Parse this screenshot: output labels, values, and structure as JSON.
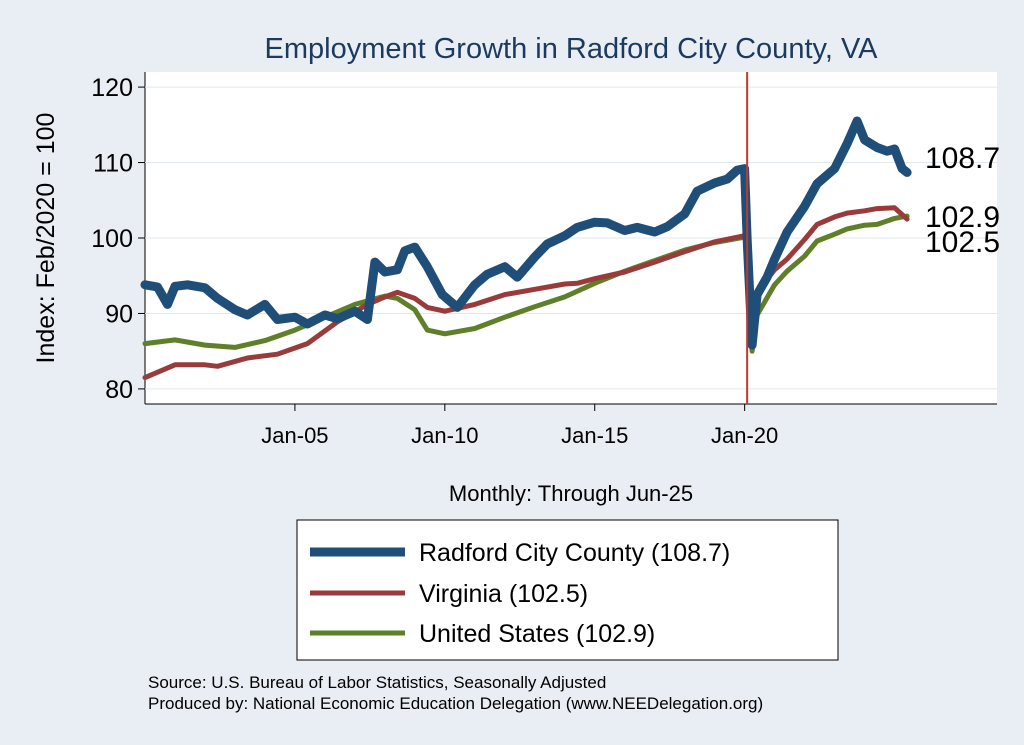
{
  "chart_data": {
    "type": "line",
    "title": "Employment Growth in Radford City  County, VA",
    "xlabel": "Monthly: Through Jun-25",
    "ylabel": "Index: Feb/2020 = 100",
    "xlim": [
      "2000-01",
      "2028-06"
    ],
    "ylim": [
      78,
      122
    ],
    "yticks": [
      80,
      90,
      100,
      110,
      120
    ],
    "xticks": [
      {
        "label": "Jan-05",
        "date": "2005-01"
      },
      {
        "label": "Jan-10",
        "date": "2010-01"
      },
      {
        "label": "Jan-15",
        "date": "2015-01"
      },
      {
        "label": "Jan-20",
        "date": "2020-01"
      }
    ],
    "grid": true,
    "legend_position": "bottom",
    "reference_line": {
      "date": "2020-02",
      "color": "#c0392b"
    },
    "end_labels": [
      "108.7",
      "102.9",
      "102.5"
    ],
    "series": [
      {
        "name": "Radford City  County (108.7)",
        "color": "#1f4e79",
        "points": [
          [
            "2000-01",
            93.8
          ],
          [
            "2000-06",
            93.5
          ],
          [
            "2000-10",
            91.2
          ],
          [
            "2001-01",
            93.6
          ],
          [
            "2001-06",
            93.8
          ],
          [
            "2002-01",
            93.4
          ],
          [
            "2002-06",
            92.0
          ],
          [
            "2003-01",
            90.5
          ],
          [
            "2003-06",
            89.8
          ],
          [
            "2004-01",
            91.2
          ],
          [
            "2004-06",
            89.2
          ],
          [
            "2005-01",
            89.5
          ],
          [
            "2005-06",
            88.6
          ],
          [
            "2006-01",
            89.8
          ],
          [
            "2006-06",
            89.3
          ],
          [
            "2007-01",
            90.3
          ],
          [
            "2007-06",
            89.2
          ],
          [
            "2007-09",
            96.8
          ],
          [
            "2008-01",
            95.5
          ],
          [
            "2008-06",
            95.8
          ],
          [
            "2008-09",
            98.3
          ],
          [
            "2009-01",
            98.8
          ],
          [
            "2009-06",
            96.2
          ],
          [
            "2009-12",
            92.5
          ],
          [
            "2010-06",
            90.8
          ],
          [
            "2011-01",
            93.8
          ],
          [
            "2011-06",
            95.2
          ],
          [
            "2012-01",
            96.2
          ],
          [
            "2012-06",
            94.8
          ],
          [
            "2013-01",
            97.5
          ],
          [
            "2013-06",
            99.2
          ],
          [
            "2014-01",
            100.3
          ],
          [
            "2014-06",
            101.4
          ],
          [
            "2015-01",
            102.1
          ],
          [
            "2015-06",
            102.0
          ],
          [
            "2016-01",
            101.0
          ],
          [
            "2016-06",
            101.4
          ],
          [
            "2017-01",
            100.8
          ],
          [
            "2017-06",
            101.5
          ],
          [
            "2018-01",
            103.2
          ],
          [
            "2018-06",
            106.2
          ],
          [
            "2019-01",
            107.3
          ],
          [
            "2019-06",
            107.8
          ],
          [
            "2019-10",
            109.0
          ],
          [
            "2020-01",
            109.2
          ],
          [
            "2020-02",
            100.0
          ],
          [
            "2020-04",
            85.8
          ],
          [
            "2020-06",
            92.5
          ],
          [
            "2020-10",
            94.8
          ],
          [
            "2021-01",
            97.2
          ],
          [
            "2021-06",
            100.8
          ],
          [
            "2022-01",
            104.2
          ],
          [
            "2022-06",
            107.2
          ],
          [
            "2023-01",
            109.2
          ],
          [
            "2023-06",
            112.5
          ],
          [
            "2023-10",
            115.5
          ],
          [
            "2024-01",
            113.0
          ],
          [
            "2024-06",
            112.0
          ],
          [
            "2024-10",
            111.5
          ],
          [
            "2025-01",
            111.8
          ],
          [
            "2025-04",
            109.2
          ],
          [
            "2025-06",
            108.7
          ]
        ]
      },
      {
        "name": "Virginia (102.5)",
        "color": "#9a3b3b",
        "points": [
          [
            "2000-01",
            81.5
          ],
          [
            "2001-01",
            83.2
          ],
          [
            "2002-01",
            83.2
          ],
          [
            "2002-06",
            83.0
          ],
          [
            "2003-06",
            84.1
          ],
          [
            "2004-06",
            84.6
          ],
          [
            "2005-06",
            86.0
          ],
          [
            "2006-06",
            88.9
          ],
          [
            "2007-06",
            91.2
          ],
          [
            "2008-01",
            92.2
          ],
          [
            "2008-06",
            92.8
          ],
          [
            "2009-01",
            92.0
          ],
          [
            "2009-06",
            90.8
          ],
          [
            "2010-01",
            90.3
          ],
          [
            "2011-01",
            91.2
          ],
          [
            "2012-01",
            92.5
          ],
          [
            "2013-01",
            93.2
          ],
          [
            "2014-01",
            93.9
          ],
          [
            "2014-06",
            94.0
          ],
          [
            "2015-01",
            94.6
          ],
          [
            "2016-01",
            95.5
          ],
          [
            "2017-01",
            96.8
          ],
          [
            "2018-01",
            98.2
          ],
          [
            "2019-01",
            99.5
          ],
          [
            "2020-01",
            100.3
          ],
          [
            "2020-02",
            100.0
          ],
          [
            "2020-04",
            88.5
          ],
          [
            "2020-06",
            92.8
          ],
          [
            "2021-01",
            95.8
          ],
          [
            "2021-06",
            97.2
          ],
          [
            "2022-01",
            99.8
          ],
          [
            "2022-06",
            101.8
          ],
          [
            "2023-01",
            102.8
          ],
          [
            "2023-06",
            103.3
          ],
          [
            "2024-01",
            103.6
          ],
          [
            "2024-06",
            103.9
          ],
          [
            "2025-01",
            104.0
          ],
          [
            "2025-06",
            102.5
          ]
        ]
      },
      {
        "name": "United States (102.9)",
        "color": "#5f7f2a",
        "points": [
          [
            "2000-01",
            86.0
          ],
          [
            "2001-01",
            86.5
          ],
          [
            "2002-01",
            85.8
          ],
          [
            "2003-01",
            85.5
          ],
          [
            "2004-01",
            86.4
          ],
          [
            "2005-01",
            87.8
          ],
          [
            "2006-01",
            89.5
          ],
          [
            "2007-01",
            91.2
          ],
          [
            "2008-01",
            92.3
          ],
          [
            "2008-06",
            92.0
          ],
          [
            "2009-01",
            90.5
          ],
          [
            "2009-06",
            87.8
          ],
          [
            "2010-01",
            87.3
          ],
          [
            "2011-01",
            88.0
          ],
          [
            "2012-01",
            89.5
          ],
          [
            "2013-01",
            90.9
          ],
          [
            "2014-01",
            92.2
          ],
          [
            "2015-01",
            94.0
          ],
          [
            "2016-01",
            95.6
          ],
          [
            "2017-01",
            97.0
          ],
          [
            "2018-01",
            98.4
          ],
          [
            "2019-01",
            99.4
          ],
          [
            "2020-01",
            100.1
          ],
          [
            "2020-02",
            100.0
          ],
          [
            "2020-04",
            85.0
          ],
          [
            "2020-06",
            89.8
          ],
          [
            "2021-01",
            93.8
          ],
          [
            "2021-06",
            95.6
          ],
          [
            "2022-01",
            97.6
          ],
          [
            "2022-06",
            99.6
          ],
          [
            "2023-01",
            100.5
          ],
          [
            "2023-06",
            101.2
          ],
          [
            "2024-01",
            101.7
          ],
          [
            "2024-06",
            101.8
          ],
          [
            "2025-01",
            102.6
          ],
          [
            "2025-06",
            102.9
          ]
        ]
      }
    ]
  },
  "footer": {
    "source": "Source: U.S. Bureau of Labor Statistics, Seasonally Adjusted",
    "producer": "Produced by: National Economic Education Delegation (www.NEEDelegation.org)"
  }
}
